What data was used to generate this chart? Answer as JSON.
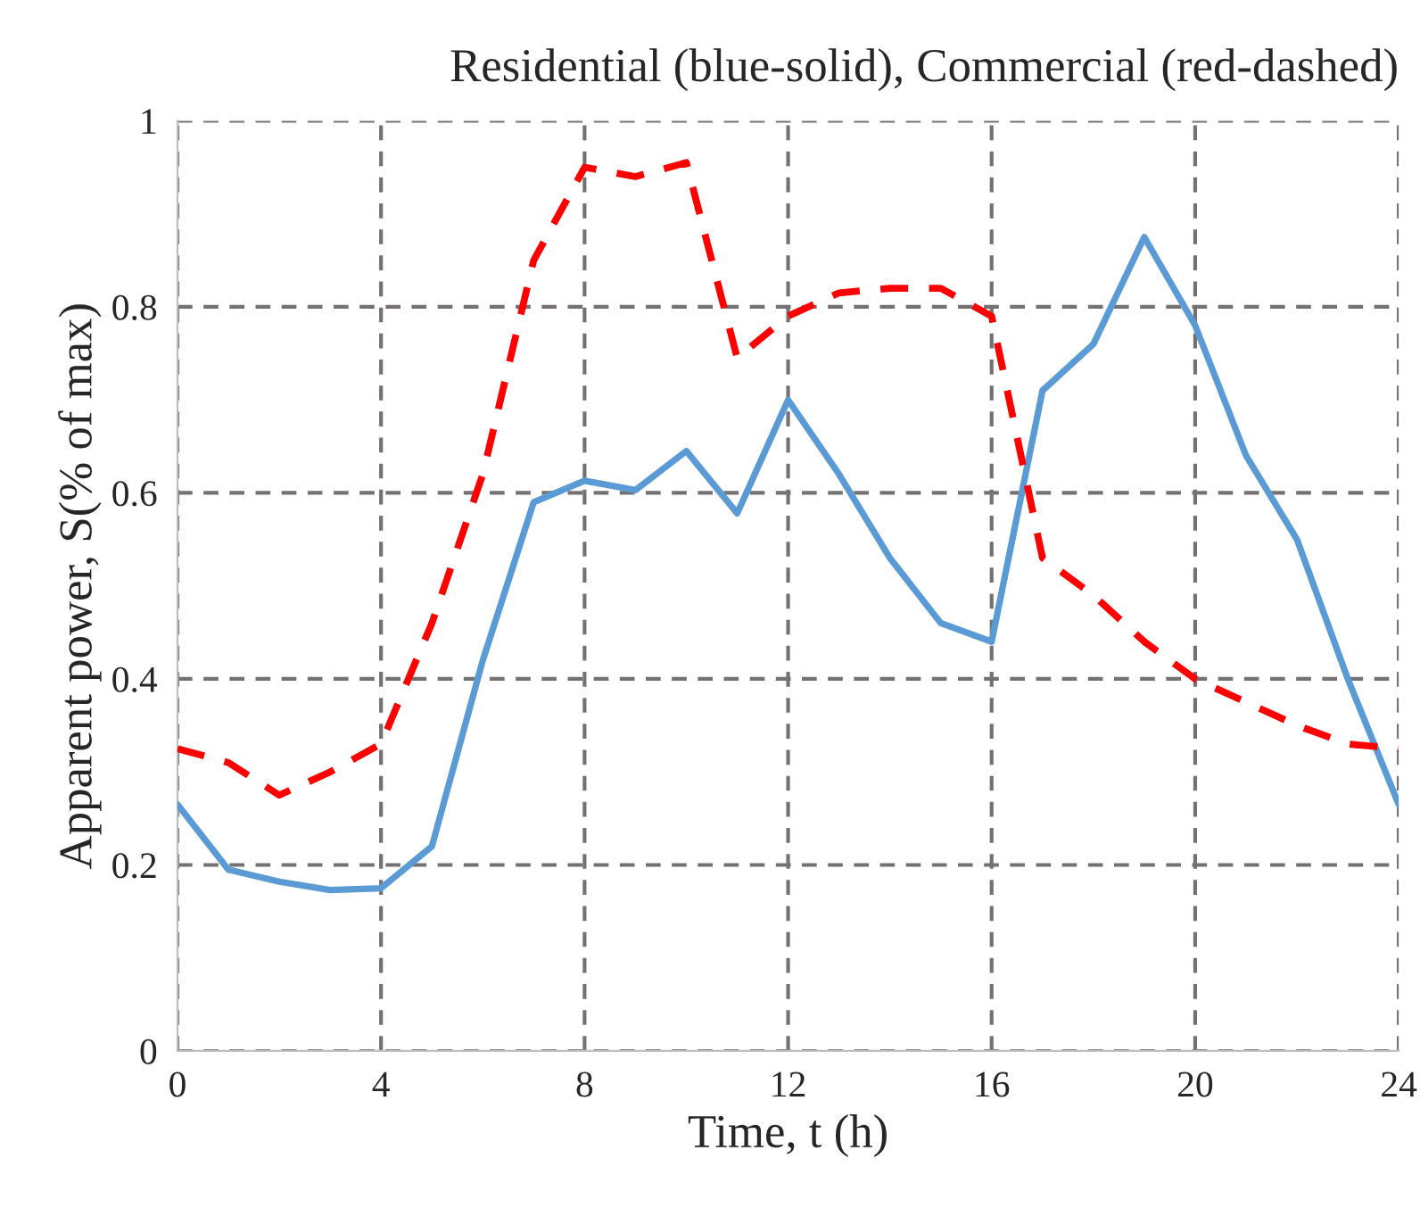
{
  "chart_data": {
    "type": "line",
    "title": "Residential (blue-solid), Commercial (red-dashed)",
    "xlabel": "Time, t (h)",
    "ylabel": "Apparent power, S(% of max)",
    "x": [
      0,
      1,
      2,
      3,
      4,
      5,
      6,
      7,
      8,
      9,
      10,
      11,
      12,
      13,
      14,
      15,
      16,
      17,
      18,
      19,
      20,
      21,
      22,
      23,
      24
    ],
    "series": [
      {
        "color": "#5b9bd5",
        "line_style": "solid",
        "values": [
          0.265,
          0.195,
          0.182,
          0.173,
          0.175,
          0.22,
          0.42,
          0.59,
          0.613,
          0.603,
          0.645,
          0.578,
          0.7,
          0.62,
          0.53,
          0.46,
          0.44,
          0.71,
          0.76,
          0.875,
          0.78,
          0.64,
          0.55,
          0.4,
          0.265
        ]
      },
      {
        "color": "#ff0000",
        "line_style": "dashed",
        "values": [
          0.325,
          0.31,
          0.275,
          0.3,
          0.33,
          0.46,
          0.62,
          0.85,
          0.95,
          0.94,
          0.955,
          0.745,
          0.79,
          0.815,
          0.82,
          0.82,
          0.79,
          0.53,
          0.49,
          0.44,
          0.4,
          0.375,
          0.35,
          0.33,
          0.325
        ]
      }
    ],
    "xlim": [
      0,
      24
    ],
    "xticks": [
      0,
      4,
      8,
      12,
      16,
      20,
      24
    ],
    "ylim": [
      0,
      1
    ],
    "yticks": [
      0,
      0.2,
      0.4,
      0.6,
      0.8,
      1
    ],
    "grid": true,
    "legend": false
  }
}
